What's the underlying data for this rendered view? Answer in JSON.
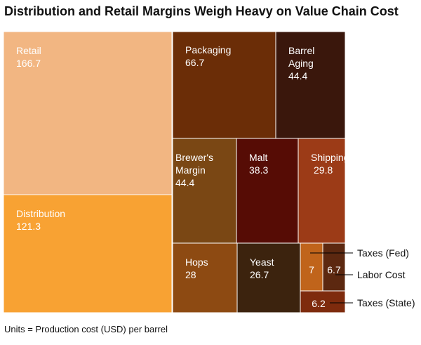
{
  "title": "Distribution and Retail Margins Weigh Heavy on Value Chain Cost",
  "note": "Units = Production cost (USD) per barrel",
  "chart_data": {
    "type": "treemap",
    "title": "Distribution and Retail Margins Weigh Heavy on Value Chain Cost",
    "units": "Units = Production cost (USD) per barrel",
    "items": [
      {
        "label": "Retail",
        "display": "Retail",
        "value": 166.7,
        "color": "#f2b682"
      },
      {
        "label": "Distribution",
        "display": "Distribution",
        "value": 121.3,
        "color": "#f8a233"
      },
      {
        "label": "Packaging",
        "display": "Packaging",
        "value": 66.7,
        "color": "#6b2d07"
      },
      {
        "label": "Barrel Aging",
        "display": "Barrel\nAging",
        "value": 44.4,
        "color": "#3a170c"
      },
      {
        "label": "Brewer's Margin",
        "display": "Brewer's\nMargin",
        "value": 44.4,
        "color": "#7a4714"
      },
      {
        "label": "Malt",
        "display": "Malt",
        "value": 38.3,
        "color": "#560c05"
      },
      {
        "label": "Shipping",
        "display": "Shipping",
        "value": 29.8,
        "color": "#9c3b17"
      },
      {
        "label": "Hops",
        "display": "Hops",
        "value": 28,
        "color": "#8d4a12"
      },
      {
        "label": "Yeast",
        "display": "Yeast",
        "value": 26.7,
        "color": "#3c230e"
      },
      {
        "label": "Taxes (Fed)",
        "display": "",
        "value": 7,
        "color": "#c0641b",
        "callout": "Taxes (Fed)"
      },
      {
        "label": "Labor Cost",
        "display": "",
        "value": 6.7,
        "color": "#5c2810",
        "callout": "Labor Cost"
      },
      {
        "label": "Taxes (State)",
        "display": "",
        "value": 6.2,
        "color": "#7e2b0d",
        "callout": "Taxes (State)"
      }
    ]
  }
}
